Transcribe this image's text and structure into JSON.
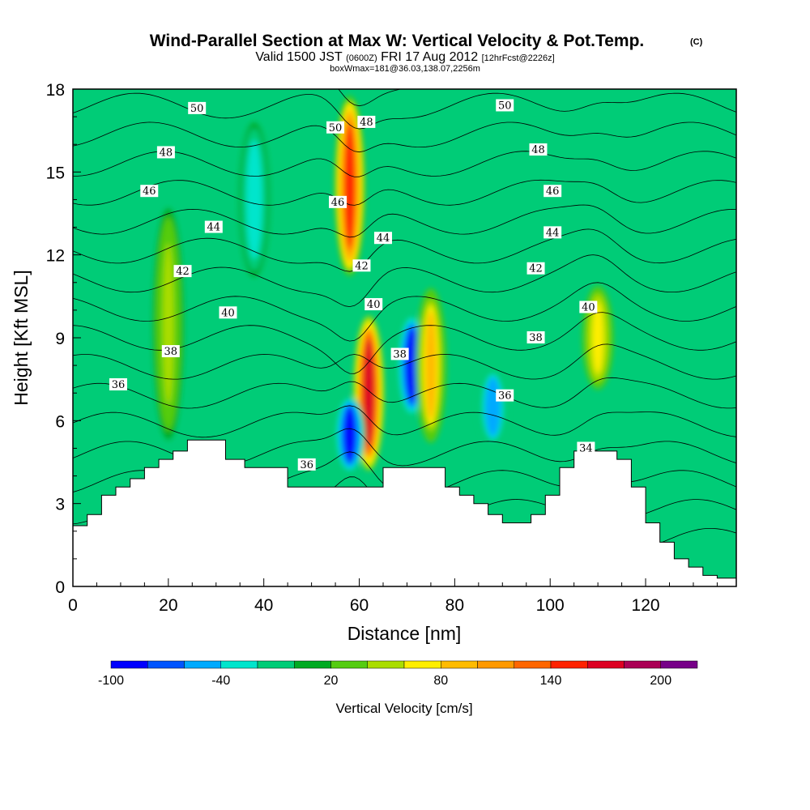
{
  "chart_data": {
    "type": "heatmap",
    "title": "Wind-Parallel Section at Max W: Vertical Velocity & Pot.Temp.",
    "title_mark": "(C)",
    "subtitle": {
      "valid": "Valid 1500 JST",
      "utc": "(0600Z)",
      "date": "FRI 17 Aug 2012",
      "forecast": "[12hrFcst@2226z]"
    },
    "info_line": "boxWmax=181@36.03,138.07,2256m",
    "xlabel": "Distance [nm]",
    "ylabel": "Height [Kft MSL]",
    "xlim": [
      0,
      139
    ],
    "ylim": [
      0,
      18
    ],
    "x_ticks": [
      0,
      20,
      40,
      60,
      80,
      100,
      120
    ],
    "y_ticks": [
      0,
      3,
      6,
      9,
      12,
      15,
      18
    ],
    "colorbar": {
      "label": "Vertical Velocity [cm/s]",
      "tick_labels": [
        "-100",
        "-40",
        "20",
        "80",
        "140",
        "200"
      ],
      "tick_values": [
        -100,
        -40,
        20,
        80,
        140,
        200
      ],
      "levels": [
        -100,
        -80,
        -60,
        -40,
        -20,
        0,
        20,
        40,
        60,
        80,
        100,
        120,
        140,
        160,
        180,
        200,
        220
      ],
      "colors": [
        "#0000ff",
        "#0055ff",
        "#00aaff",
        "#00e5cc",
        "#00cc77",
        "#00aa22",
        "#55cc11",
        "#aadd00",
        "#ffee00",
        "#ffbb00",
        "#ff9900",
        "#ff6600",
        "#ff2200",
        "#dd0022",
        "#aa0055",
        "#770088"
      ]
    },
    "terrain_profile": {
      "x": [
        0,
        3,
        3,
        6,
        6,
        9,
        9,
        12,
        12,
        15,
        15,
        18,
        18,
        21,
        21,
        24,
        24,
        26,
        26,
        32,
        32,
        36,
        36,
        45,
        45,
        65,
        65,
        78,
        78,
        81,
        81,
        84,
        84,
        87,
        87,
        90,
        90,
        96,
        96,
        99,
        99,
        102,
        102,
        105,
        105,
        108,
        108,
        114,
        114,
        117,
        117,
        120,
        120,
        123,
        123,
        126,
        126,
        129,
        129,
        132,
        132,
        135,
        135,
        139
      ],
      "height": [
        2.2,
        2.2,
        2.6,
        2.6,
        3.3,
        3.3,
        3.6,
        3.6,
        3.9,
        3.9,
        4.3,
        4.3,
        4.6,
        4.6,
        4.9,
        4.9,
        5.3,
        5.3,
        5.3,
        5.3,
        4.6,
        4.6,
        4.3,
        4.3,
        3.6,
        3.6,
        4.3,
        4.3,
        3.6,
        3.6,
        3.3,
        3.3,
        3.0,
        3.0,
        2.6,
        2.6,
        2.3,
        2.3,
        2.6,
        2.6,
        3.3,
        3.3,
        4.3,
        4.3,
        4.9,
        4.9,
        4.9,
        4.9,
        4.6,
        4.6,
        3.6,
        3.6,
        2.3,
        2.3,
        1.6,
        1.6,
        1.0,
        1.0,
        0.7,
        0.7,
        0.4,
        0.4,
        0.3,
        0.3
      ]
    },
    "vertical_velocity_features": [
      {
        "kind": "updraft",
        "x": 58,
        "height_range": [
          11,
          18
        ],
        "max_cm_s": 140
      },
      {
        "kind": "updraft",
        "x": 62,
        "height_range": [
          4,
          10
        ],
        "max_cm_s": 160
      },
      {
        "kind": "downdraft",
        "x": 58,
        "height_range": [
          4,
          7
        ],
        "min_cm_s": -90
      },
      {
        "kind": "downdraft",
        "x": 71,
        "height_range": [
          6,
          10
        ],
        "min_cm_s": -90
      },
      {
        "kind": "updraft",
        "x": 75,
        "height_range": [
          5,
          11
        ],
        "max_cm_s": 80
      },
      {
        "kind": "downdraft",
        "x": 88,
        "height_range": [
          5,
          8
        ],
        "min_cm_s": -60
      },
      {
        "kind": "updraft",
        "x": 110,
        "height_range": [
          7,
          11
        ],
        "max_cm_s": 60
      },
      {
        "kind": "downdraft",
        "x": 38,
        "height_range": [
          11,
          17
        ],
        "min_cm_s": -40
      },
      {
        "kind": "updraft",
        "x": 20,
        "height_range": [
          5,
          14
        ],
        "max_cm_s": 40
      }
    ],
    "potential_temperature_contours": {
      "interval": 1,
      "range": [
        34,
        50
      ],
      "labels": [
        {
          "text": "50",
          "x": 26,
          "height": 17.3
        },
        {
          "text": "48",
          "x": 19.5,
          "height": 15.7
        },
        {
          "text": "46",
          "x": 16,
          "height": 14.3
        },
        {
          "text": "44",
          "x": 29.5,
          "height": 13.0
        },
        {
          "text": "42",
          "x": 23,
          "height": 11.4
        },
        {
          "text": "40",
          "x": 32.5,
          "height": 9.9
        },
        {
          "text": "38",
          "x": 20.5,
          "height": 8.5
        },
        {
          "text": "36",
          "x": 9.5,
          "height": 7.3
        },
        {
          "text": "50",
          "x": 55,
          "height": 16.6
        },
        {
          "text": "48",
          "x": 61.5,
          "height": 16.8
        },
        {
          "text": "46",
          "x": 55.5,
          "height": 13.9
        },
        {
          "text": "44",
          "x": 65,
          "height": 12.6
        },
        {
          "text": "42",
          "x": 60.5,
          "height": 11.6
        },
        {
          "text": "40",
          "x": 63,
          "height": 10.2
        },
        {
          "text": "38",
          "x": 68.5,
          "height": 8.4
        },
        {
          "text": "36",
          "x": 49,
          "height": 4.4
        },
        {
          "text": "50",
          "x": 90.5,
          "height": 17.4
        },
        {
          "text": "48",
          "x": 97.5,
          "height": 15.8
        },
        {
          "text": "46",
          "x": 100.5,
          "height": 14.3
        },
        {
          "text": "44",
          "x": 100.5,
          "height": 12.8
        },
        {
          "text": "42",
          "x": 97,
          "height": 11.5
        },
        {
          "text": "40",
          "x": 108,
          "height": 10.1
        },
        {
          "text": "38",
          "x": 97,
          "height": 9.0
        },
        {
          "text": "36",
          "x": 90.5,
          "height": 6.9
        },
        {
          "text": "34",
          "x": 107.5,
          "height": 5.0
        }
      ]
    }
  }
}
